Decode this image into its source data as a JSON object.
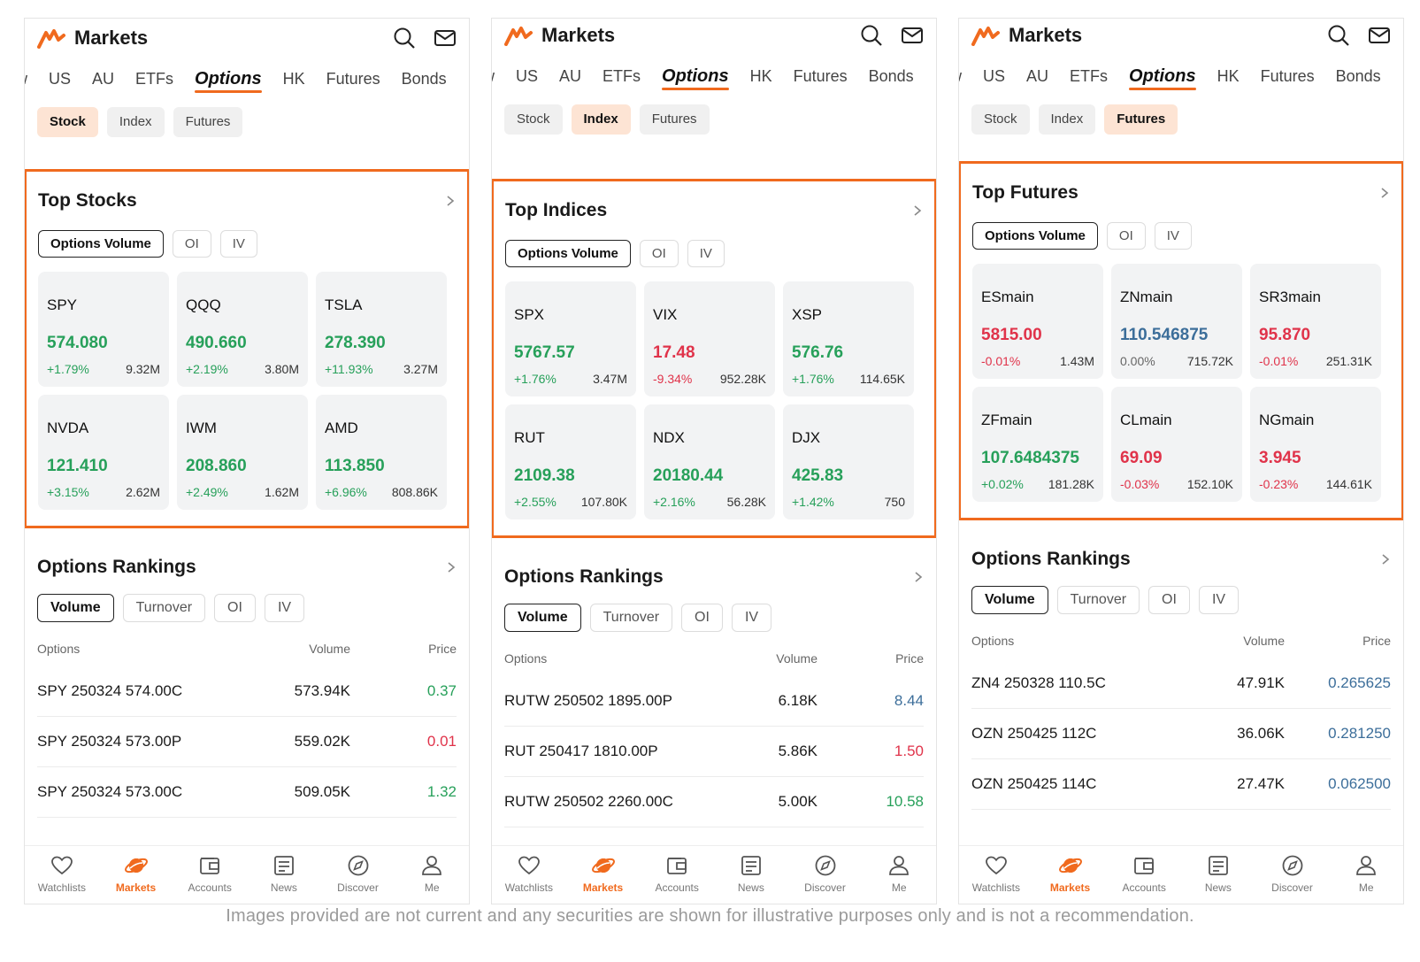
{
  "colors": {
    "accent": "#f06a1e",
    "up": "#27a05a",
    "down": "#e0334a"
  },
  "common": {
    "app_title": "Markets",
    "market_tabs": [
      "w",
      "US",
      "AU",
      "ETFs",
      "Options",
      "HK",
      "Futures",
      "Bonds"
    ],
    "subtabs": [
      "Stock",
      "Index",
      "Futures"
    ],
    "rankings_title": "Options Rankings",
    "ranking_pills": [
      "Volume",
      "Turnover",
      "OI",
      "IV"
    ],
    "table_headers": [
      "Options",
      "Volume",
      "Price"
    ],
    "nav": [
      {
        "label": "Watchlists",
        "icon": "heart-icon"
      },
      {
        "label": "Markets",
        "icon": "planet-icon"
      },
      {
        "label": "Accounts",
        "icon": "wallet-icon"
      },
      {
        "label": "News",
        "icon": "news-icon"
      },
      {
        "label": "Discover",
        "icon": "compass-icon"
      },
      {
        "label": "Me",
        "icon": "user-icon"
      }
    ]
  },
  "panels": [
    {
      "section_title": "Top Stocks",
      "section_pills": [
        "Options Volume",
        "OI",
        "IV"
      ],
      "cards": [
        {
          "symbol": "SPY",
          "price": "574.080",
          "change": "+1.79%",
          "volume": "9.32M",
          "trend": "up"
        },
        {
          "symbol": "QQQ",
          "price": "490.660",
          "change": "+2.19%",
          "volume": "3.80M",
          "trend": "up"
        },
        {
          "symbol": "TSLA",
          "price": "278.390",
          "change": "+11.93%",
          "volume": "3.27M",
          "trend": "up"
        },
        {
          "symbol": "NVDA",
          "price": "121.410",
          "change": "+3.15%",
          "volume": "2.62M",
          "trend": "up"
        },
        {
          "symbol": "IWM",
          "price": "208.860",
          "change": "+2.49%",
          "volume": "1.62M",
          "trend": "up"
        },
        {
          "symbol": "AMD",
          "price": "113.850",
          "change": "+6.96%",
          "volume": "808.86K",
          "trend": "up"
        }
      ],
      "rows": [
        {
          "option": "SPY 250324 574.00C",
          "volume": "573.94K",
          "price": "0.37",
          "trend": "up"
        },
        {
          "option": "SPY 250324 573.00P",
          "volume": "559.02K",
          "price": "0.01",
          "trend": "down"
        },
        {
          "option": "SPY 250324 573.00C",
          "volume": "509.05K",
          "price": "1.32",
          "trend": "up"
        }
      ]
    },
    {
      "section_title": "Top Indices",
      "section_pills": [
        "Options Volume",
        "OI",
        "IV"
      ],
      "cards": [
        {
          "symbol": "SPX",
          "price": "5767.57",
          "change": "+1.76%",
          "volume": "3.47M",
          "trend": "up"
        },
        {
          "symbol": "VIX",
          "price": "17.48",
          "change": "-9.34%",
          "volume": "952.28K",
          "trend": "down"
        },
        {
          "symbol": "XSP",
          "price": "576.76",
          "change": "+1.76%",
          "volume": "114.65K",
          "trend": "up"
        },
        {
          "symbol": "RUT",
          "price": "2109.38",
          "change": "+2.55%",
          "volume": "107.80K",
          "trend": "up"
        },
        {
          "symbol": "NDX",
          "price": "20180.44",
          "change": "+2.16%",
          "volume": "56.28K",
          "trend": "up"
        },
        {
          "symbol": "DJX",
          "price": "425.83",
          "change": "+1.42%",
          "volume": "750",
          "trend": "up"
        }
      ],
      "rows": [
        {
          "option": "RUTW 250502 1895.00P",
          "volume": "6.18K",
          "price": "8.44",
          "trend": "neutral"
        },
        {
          "option": "RUT 250417 1810.00P",
          "volume": "5.86K",
          "price": "1.50",
          "trend": "down"
        },
        {
          "option": "RUTW 250502 2260.00C",
          "volume": "5.00K",
          "price": "10.58",
          "trend": "up"
        }
      ]
    },
    {
      "section_title": "Top Futures",
      "section_pills": [
        "Options Volume",
        "OI",
        "IV"
      ],
      "cards": [
        {
          "symbol": "ESmain",
          "price": "5815.00",
          "change": "-0.01%",
          "volume": "1.43M",
          "trend": "down"
        },
        {
          "symbol": "ZNmain",
          "price": "110.546875",
          "change": "0.00%",
          "volume": "715.72K",
          "trend": "flat"
        },
        {
          "symbol": "SR3main",
          "price": "95.870",
          "change": "-0.01%",
          "volume": "251.31K",
          "trend": "down"
        },
        {
          "symbol": "ZFmain",
          "price": "107.6484375",
          "change": "+0.02%",
          "volume": "181.28K",
          "trend": "up"
        },
        {
          "symbol": "CLmain",
          "price": "69.09",
          "change": "-0.03%",
          "volume": "152.10K",
          "trend": "down"
        },
        {
          "symbol": "NGmain",
          "price": "3.945",
          "change": "-0.23%",
          "volume": "144.61K",
          "trend": "down"
        }
      ],
      "rows": [
        {
          "option": "ZN4 250328 110.5C",
          "volume": "47.91K",
          "price": "0.265625",
          "trend": "neutral"
        },
        {
          "option": "OZN 250425 112C",
          "volume": "36.06K",
          "price": "0.281250",
          "trend": "neutral"
        },
        {
          "option": "OZN 250425 114C",
          "volume": "27.47K",
          "price": "0.062500",
          "trend": "neutral"
        }
      ]
    }
  ],
  "disclaimer": "Images provided are not current and any securities are shown for illustrative purposes only and is not a recommendation."
}
